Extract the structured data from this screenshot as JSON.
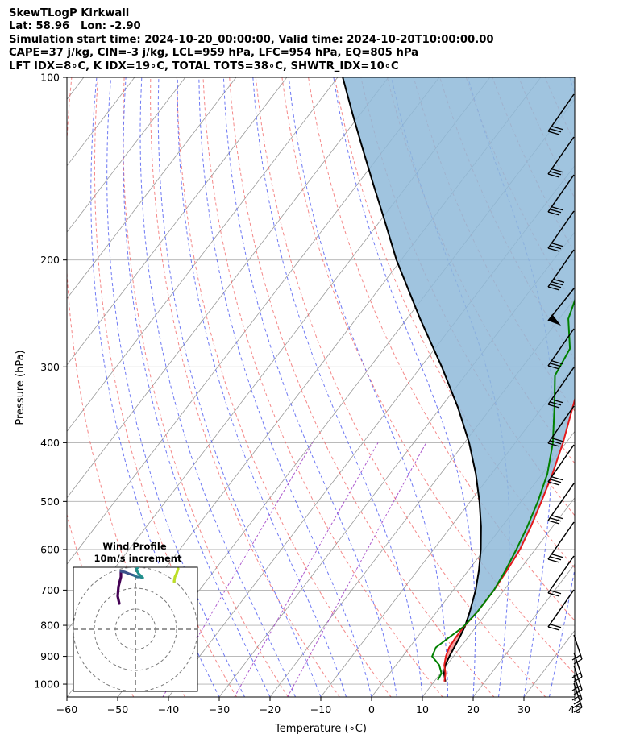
{
  "header": {
    "line1": "SkewTLogP Kirkwall",
    "line2": "Lat: 58.96   Lon: -2.90",
    "line3": "Simulation start time: 2024-10-20_00:00:00, Valid time: 2024-10-20T10:00:00.00",
    "line4": "CAPE=37 j/kg, CIN=-3 j/kg, LCL=959 hPa, LFC=954 hPa, EQ=805 hPa",
    "line5": "LFT IDX=8∘C, K IDX=19∘C, TOTAL TOTS=38∘C, SHWTR_IDX=10∘C"
  },
  "colors": {
    "temperature": "#e41a1c",
    "dewpoint": "#008000",
    "parcel": "#000000",
    "cape_fill": "#8fbad9",
    "cin_fill": "#f38c8c",
    "dry_adiabat": "#f06060",
    "moist_adiabat": "#4a58f0",
    "mixing_ratio": "#9e3cc4",
    "isotherm": "#9a9a9a",
    "grid": "#b0b0b0"
  },
  "chart_data": {
    "type": "skew-t log-p",
    "xlabel": "Temperature (∘C)",
    "ylabel": "Pressure (hPa)",
    "xlim": [
      -60,
      40
    ],
    "ylim": [
      1050,
      100
    ],
    "xticks": [
      "−60",
      "−50",
      "−40",
      "−30",
      "−20",
      "−10",
      "0",
      "10",
      "20",
      "30",
      "40"
    ],
    "yticks": [
      "100",
      "200",
      "300",
      "400",
      "500",
      "600",
      "700",
      "800",
      "900",
      "1000"
    ],
    "grid": true,
    "temperature": {
      "pressure": [
        990,
        960,
        930,
        900,
        870,
        840,
        805,
        760,
        700,
        650,
        600,
        550,
        500,
        450,
        400,
        350,
        320,
        300,
        280,
        260,
        240,
        220,
        200,
        190,
        170,
        150,
        130,
        115,
        100
      ],
      "value": [
        12,
        11,
        9.5,
        8.5,
        7.8,
        7.6,
        7.6,
        8,
        8,
        7.6,
        7,
        5.7,
        4,
        2,
        -0.6,
        -4,
        -6.3,
        -7.5,
        -7.8,
        -7,
        -5.5,
        -2.5,
        2,
        3.4,
        5,
        6.5,
        9,
        11,
        14.8
      ]
    },
    "dewpoint": {
      "pressure": [
        985,
        960,
        930,
        900,
        870,
        840,
        805,
        760,
        700,
        650,
        600,
        550,
        500,
        450,
        400,
        350,
        310,
        280,
        250,
        230,
        210,
        195,
        180,
        170,
        150,
        130,
        115,
        100
      ],
      "value": [
        10.5,
        10.2,
        8.5,
        5.8,
        5.2,
        6.2,
        7.5,
        8,
        8,
        7.3,
        6.3,
        5,
        3.3,
        1,
        -2.6,
        -7.6,
        -12.3,
        -13.4,
        -18.2,
        -20,
        -23.2,
        -25,
        -26.7,
        -26,
        -23,
        -19,
        -15,
        -9.3
      ]
    },
    "parcel": {
      "pressure": [
        990,
        960,
        930,
        900,
        870,
        840,
        805,
        760,
        700,
        650,
        600,
        550,
        500,
        450,
        400,
        350,
        300,
        250,
        200,
        170,
        150,
        130,
        115,
        100
      ],
      "value": [
        12.2,
        10.7,
        9.7,
        9.2,
        8.8,
        8.4,
        7.8,
        6.5,
        4.4,
        2.1,
        -0.7,
        -4.1,
        -8.2,
        -13.1,
        -19.1,
        -26.6,
        -35.9,
        -47.4,
        -60.9,
        -69.9,
        -76.9,
        -84.8,
        -91.5,
        -99
      ]
    },
    "wind_profile": {
      "title": "Wind Profile",
      "subtitle": "10m/s increment"
    }
  }
}
